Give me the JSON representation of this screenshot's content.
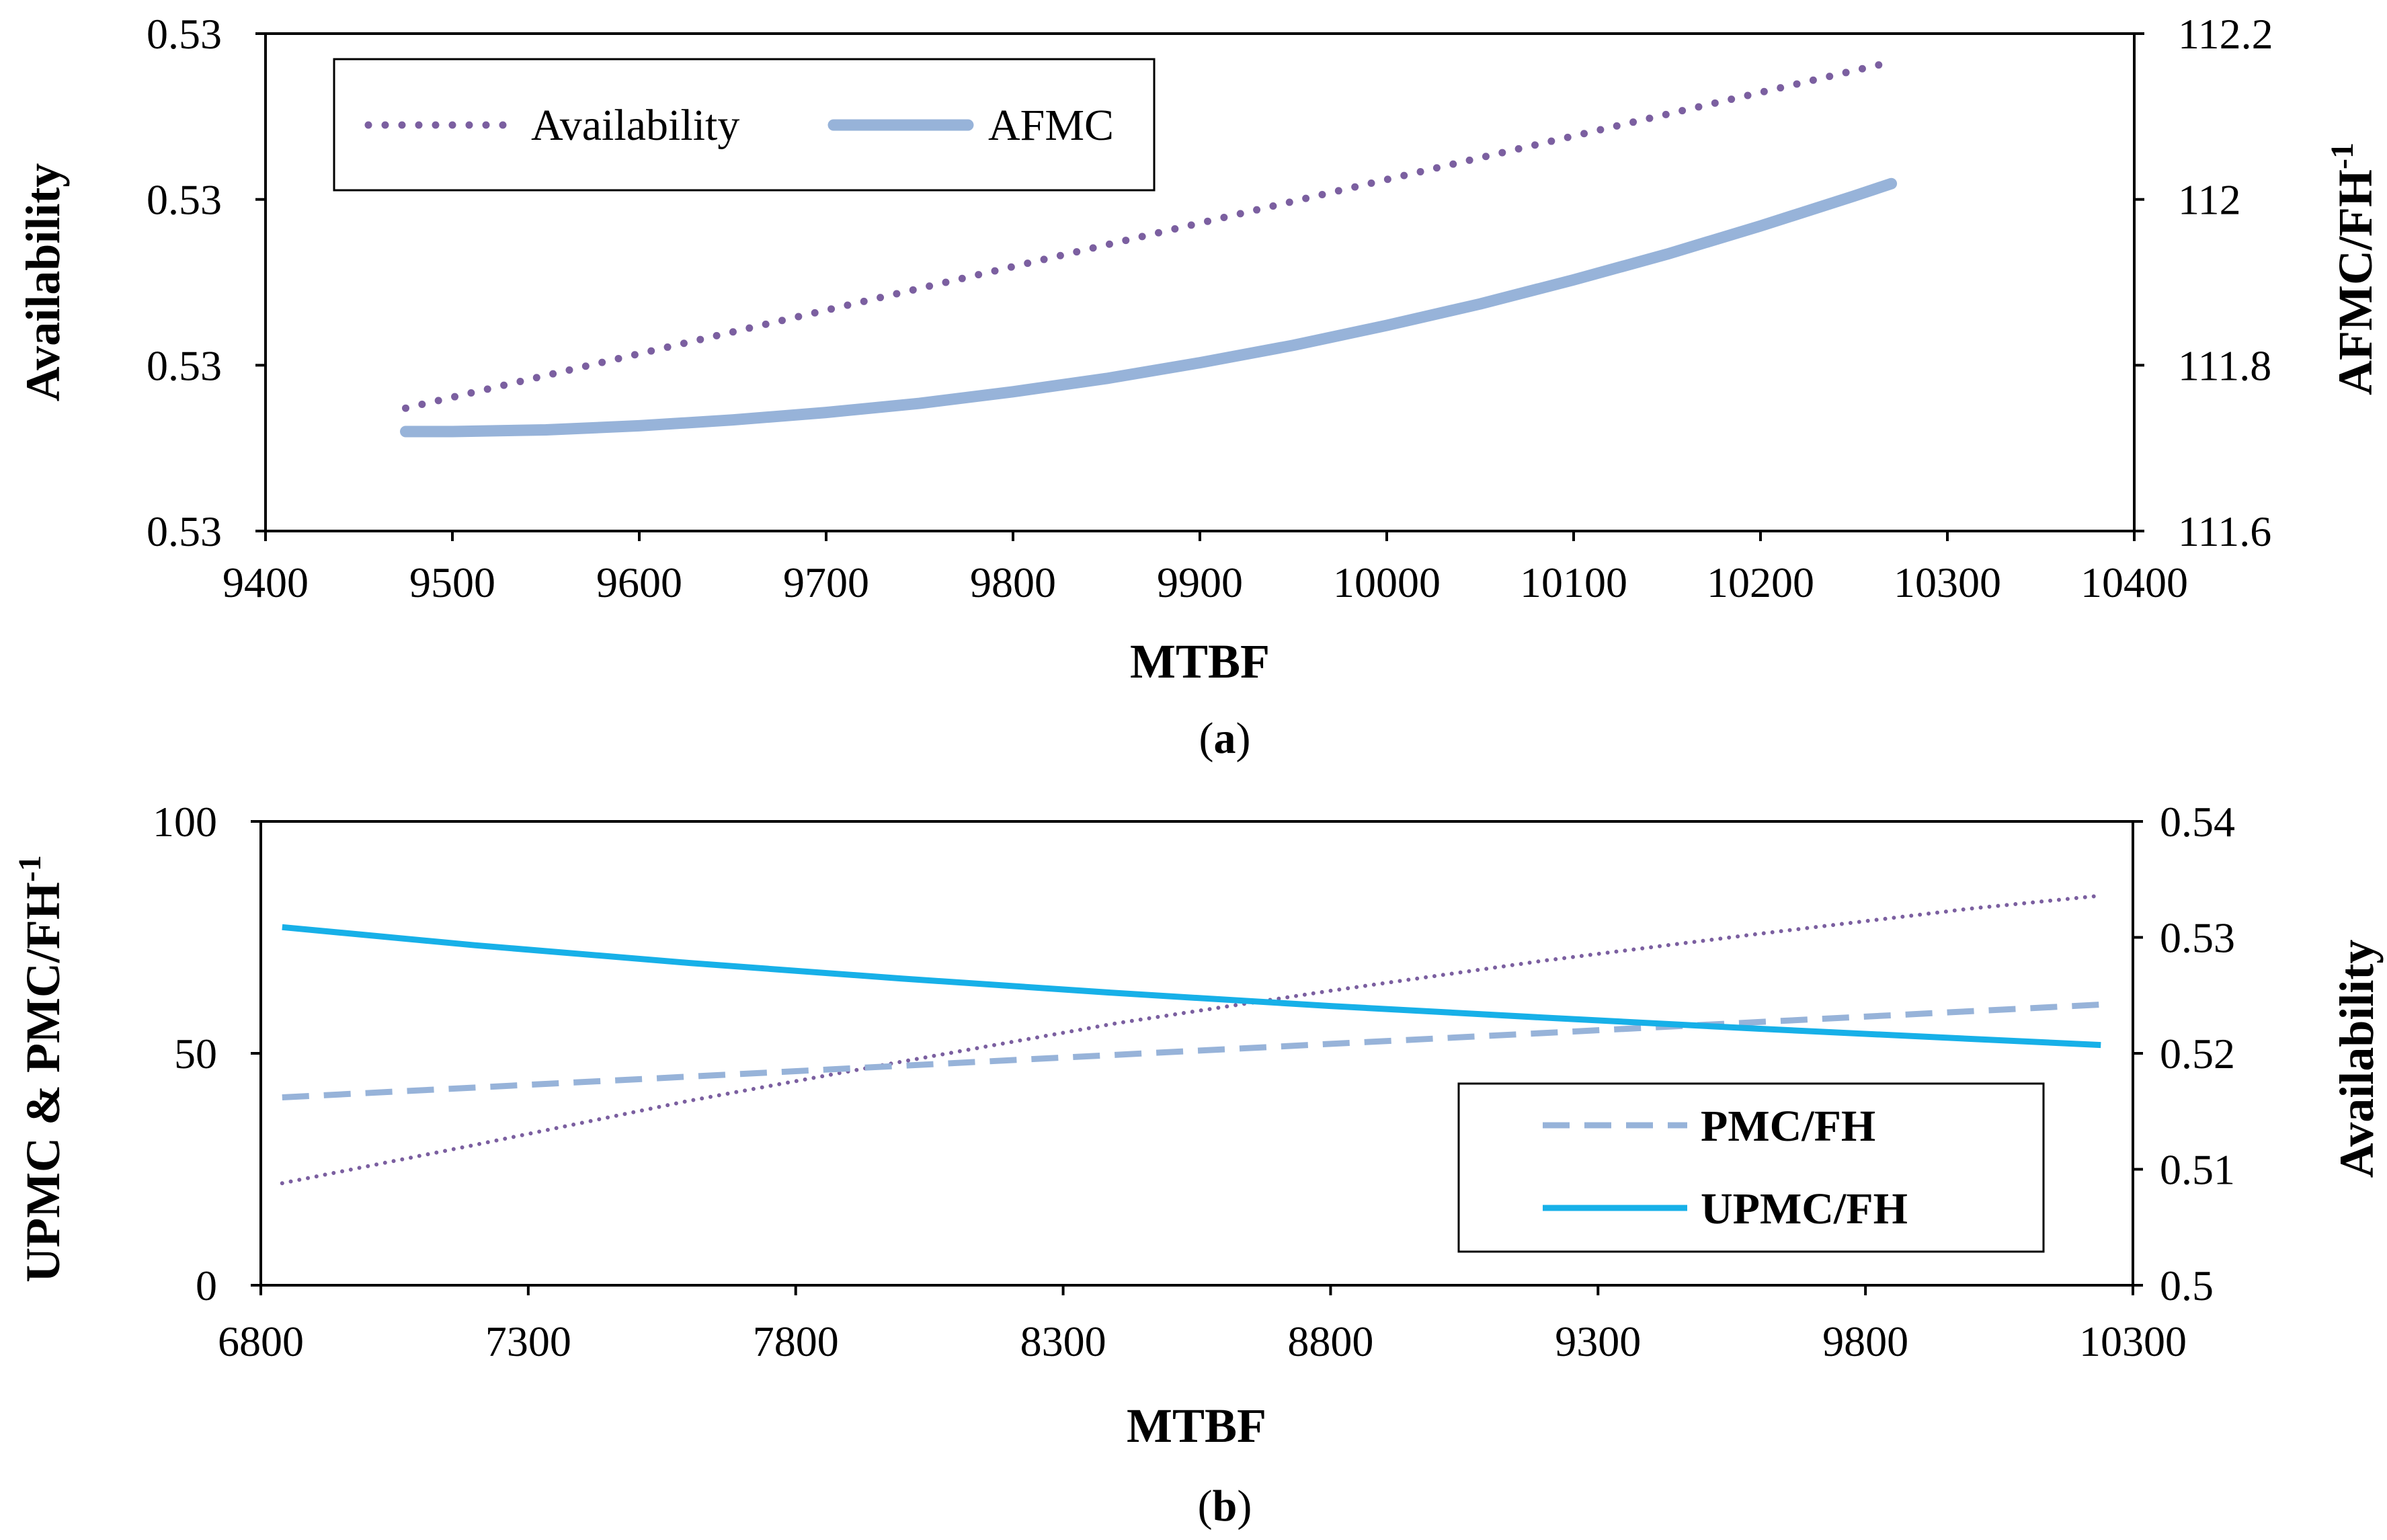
{
  "figure_labels": {
    "a": "a",
    "b": "b"
  },
  "colors": {
    "availability": "#7b5fa0",
    "afmc": "#97b3d9",
    "pmc": "#97b3d9",
    "upmc": "#17b0e8"
  },
  "chart_data": [
    {
      "id": "a",
      "type": "line",
      "xlabel": "MTBF",
      "ylabel_left": "Availability",
      "ylabel_right_main": "AFMC/FH",
      "ylabel_right_sup": "-1",
      "xlim": [
        9400,
        10400
      ],
      "x_ticks": [
        "9400",
        "9500",
        "9600",
        "9700",
        "9800",
        "9900",
        "10000",
        "10100",
        "10200",
        "10300",
        "10400"
      ],
      "left_ticks": [
        "0.53",
        "0.53",
        "0.53",
        "0.53"
      ],
      "right_ylim": [
        111.6,
        112.2
      ],
      "right_ticks": [
        "111.6",
        "111.8",
        "112",
        "112.2"
      ],
      "left_axis_fraction": [
        0,
        1
      ],
      "series": [
        {
          "name": "Availability",
          "style": "dotted",
          "axis": "left",
          "x": [
            9475,
            10270
          ],
          "y_fraction": [
            0.247,
            0.943
          ]
        },
        {
          "name": "AFMC",
          "style": "solid",
          "axis": "right",
          "x": [
            9475,
            9500,
            9550,
            9600,
            9650,
            9700,
            9750,
            9800,
            9850,
            9900,
            9950,
            10000,
            10050,
            10100,
            10150,
            10200,
            10250,
            10270
          ],
          "y": [
            111.72,
            111.72,
            111.722,
            111.727,
            111.734,
            111.743,
            111.754,
            111.768,
            111.784,
            111.803,
            111.824,
            111.848,
            111.874,
            111.903,
            111.934,
            111.968,
            112.004,
            112.019
          ]
        }
      ],
      "legend": [
        "Availability",
        "AFMC"
      ]
    },
    {
      "id": "b",
      "type": "line",
      "xlabel": "MTBF",
      "ylabel_left_main": "UPMC & PMC/FH",
      "ylabel_left_sup": "-1",
      "ylabel_right": "Availability",
      "xlim": [
        6800,
        10300
      ],
      "x_ticks": [
        "6800",
        "7300",
        "7800",
        "8300",
        "8800",
        "9300",
        "9800",
        "10300"
      ],
      "ylim_left": [
        0,
        100
      ],
      "left_ticks": [
        "0",
        "50",
        "100"
      ],
      "ylim_right": [
        0.5,
        0.54
      ],
      "right_ticks": [
        "0.5",
        "0.51",
        "0.52",
        "0.53",
        "0.54"
      ],
      "series": [
        {
          "name": "Availability",
          "style": "dotted",
          "axis": "right",
          "x": [
            6840,
            7200,
            7600,
            8000,
            8400,
            8800,
            9200,
            9600,
            10000,
            10240
          ],
          "y": [
            0.5088,
            0.5121,
            0.5159,
            0.5193,
            0.5226,
            0.5254,
            0.528,
            0.5303,
            0.5325,
            0.5336
          ]
        },
        {
          "name": "PMC/FH",
          "style": "dashed",
          "axis": "left",
          "x": [
            6840,
            10240
          ],
          "y": [
            40.5,
            60.5
          ]
        },
        {
          "name": "UPMC/FH",
          "style": "solid",
          "axis": "left",
          "x": [
            6840,
            7200,
            7600,
            8000,
            8400,
            8800,
            9200,
            9600,
            10000,
            10240
          ],
          "y": [
            77.2,
            73.3,
            69.5,
            66.1,
            63.0,
            60.2,
            57.7,
            55.3,
            53.1,
            51.8
          ]
        }
      ],
      "legend": [
        "PMC/FH",
        "UPMC/FH"
      ]
    }
  ]
}
